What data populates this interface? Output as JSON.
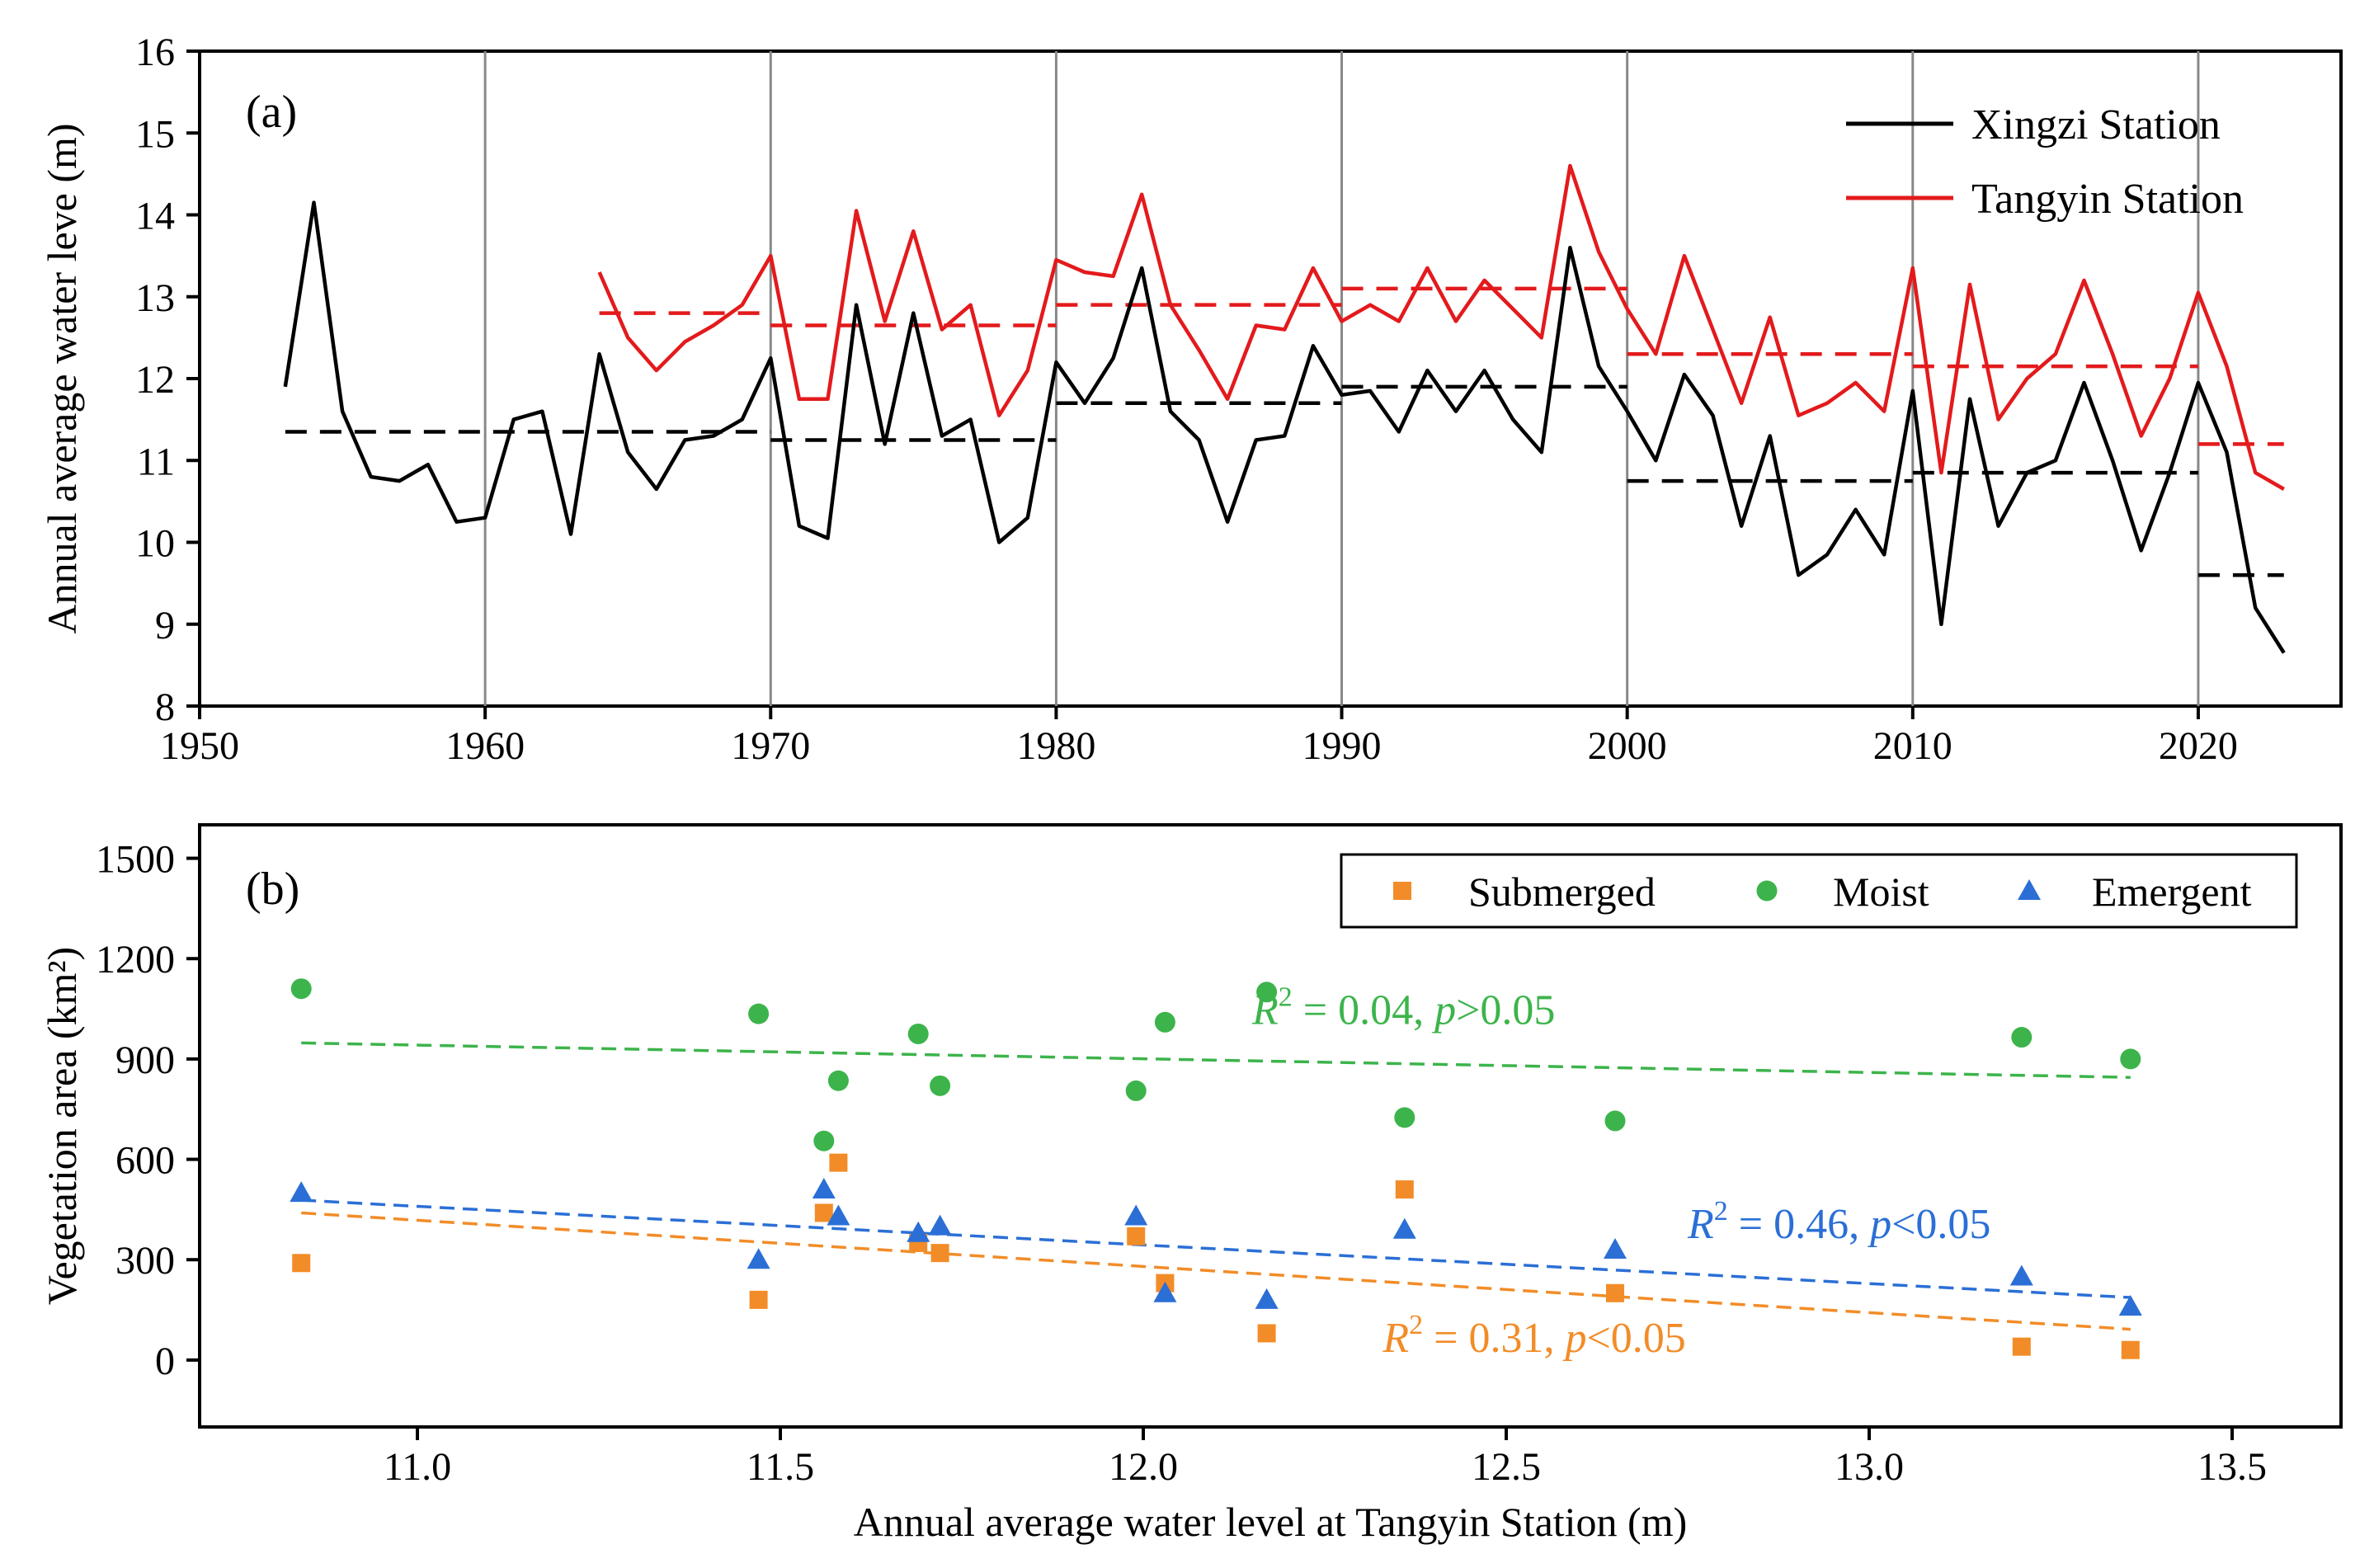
{
  "colors": {
    "xingzi": "#000000",
    "tangyin": "#e31a1c",
    "submerged": "#f28c28",
    "moist": "#3cb44b",
    "emergent": "#2b6fd6",
    "vline": "#888888"
  },
  "chart_data": [
    {
      "type": "line",
      "panel_label": "(a)",
      "xlabel": "",
      "ylabel": "Annual average water leve (m)",
      "xlim": [
        1950,
        2025
      ],
      "ylim": [
        8,
        16
      ],
      "xticks": [
        1950,
        1960,
        1970,
        1980,
        1990,
        2000,
        2010,
        2020
      ],
      "yticks": [
        8,
        9,
        10,
        11,
        12,
        13,
        14,
        15,
        16
      ],
      "decade_lines": [
        1960,
        1970,
        1980,
        1990,
        2000,
        2010,
        2020
      ],
      "legend": [
        "Xingzi Station",
        "Tangyin Station"
      ],
      "series": [
        {
          "name": "Xingzi Station",
          "x": [
            1953,
            1954,
            1955,
            1956,
            1957,
            1958,
            1959,
            1960,
            1961,
            1962,
            1963,
            1964,
            1965,
            1966,
            1967,
            1968,
            1969,
            1970,
            1971,
            1972,
            1973,
            1974,
            1975,
            1976,
            1977,
            1978,
            1979,
            1980,
            1981,
            1982,
            1983,
            1984,
            1985,
            1986,
            1987,
            1988,
            1989,
            1990,
            1991,
            1992,
            1993,
            1994,
            1995,
            1996,
            1997,
            1998,
            1999,
            2000,
            2001,
            2002,
            2003,
            2004,
            2005,
            2006,
            2007,
            2008,
            2009,
            2010,
            2011,
            2012,
            2013,
            2014,
            2015,
            2016,
            2017,
            2018,
            2019,
            2020,
            2021,
            2022,
            2023
          ],
          "values": [
            11.9,
            14.15,
            11.6,
            10.8,
            10.75,
            10.95,
            10.25,
            10.3,
            11.5,
            11.6,
            10.1,
            12.3,
            11.1,
            10.65,
            11.25,
            11.3,
            11.5,
            12.25,
            10.2,
            10.05,
            12.9,
            11.2,
            12.8,
            11.3,
            11.5,
            10.0,
            10.3,
            12.2,
            11.7,
            12.25,
            13.35,
            11.6,
            11.25,
            10.25,
            11.25,
            11.3,
            12.4,
            11.8,
            11.85,
            11.35,
            12.1,
            11.6,
            12.1,
            11.5,
            11.1,
            13.6,
            12.15,
            11.6,
            11.0,
            12.05,
            11.55,
            10.2,
            11.3,
            9.6,
            9.85,
            10.4,
            9.85,
            11.85,
            9.0,
            11.75,
            10.2,
            10.85,
            11.0,
            11.95,
            11.0,
            9.9,
            10.85,
            11.95,
            11.1,
            9.2,
            8.65
          ]
        },
        {
          "name": "Tangyin Station",
          "x": [
            1964,
            1965,
            1966,
            1967,
            1968,
            1969,
            1970,
            1971,
            1972,
            1973,
            1974,
            1975,
            1976,
            1977,
            1978,
            1979,
            1980,
            1981,
            1982,
            1983,
            1984,
            1985,
            1986,
            1987,
            1988,
            1989,
            1990,
            1991,
            1992,
            1993,
            1994,
            1995,
            1996,
            1997,
            1998,
            1999,
            2000,
            2001,
            2002,
            2003,
            2004,
            2005,
            2006,
            2007,
            2008,
            2009,
            2010,
            2011,
            2012,
            2013,
            2014,
            2015,
            2016,
            2017,
            2018,
            2019,
            2020,
            2021,
            2022,
            2023
          ],
          "values": [
            13.3,
            12.5,
            12.1,
            12.45,
            12.65,
            12.9,
            13.5,
            11.75,
            11.75,
            14.05,
            12.7,
            13.8,
            12.6,
            12.9,
            11.55,
            12.1,
            13.45,
            13.3,
            13.25,
            14.25,
            12.9,
            12.35,
            11.75,
            12.65,
            12.6,
            13.35,
            12.7,
            12.9,
            12.7,
            13.35,
            12.7,
            13.2,
            12.85,
            12.5,
            14.6,
            13.55,
            12.85,
            12.3,
            13.5,
            12.6,
            11.7,
            12.75,
            11.55,
            11.7,
            11.95,
            11.6,
            13.35,
            10.85,
            13.15,
            11.5,
            12.0,
            12.3,
            13.2,
            12.3,
            11.3,
            12.0,
            13.05,
            12.15,
            10.85,
            10.65
          ]
        }
      ],
      "means": [
        {
          "series": "Xingzi Station",
          "x0": 1953,
          "x1": 1970,
          "value": 11.35
        },
        {
          "series": "Xingzi Station",
          "x0": 1970,
          "x1": 1980,
          "value": 11.25
        },
        {
          "series": "Xingzi Station",
          "x0": 1980,
          "x1": 1990,
          "value": 11.7
        },
        {
          "series": "Xingzi Station",
          "x0": 1990,
          "x1": 2000,
          "value": 11.9
        },
        {
          "series": "Xingzi Station",
          "x0": 2000,
          "x1": 2010,
          "value": 10.75
        },
        {
          "series": "Xingzi Station",
          "x0": 2010,
          "x1": 2020,
          "value": 10.85
        },
        {
          "series": "Xingzi Station",
          "x0": 2020,
          "x1": 2023,
          "value": 9.6
        },
        {
          "series": "Tangyin Station",
          "x0": 1964,
          "x1": 1970,
          "value": 12.8
        },
        {
          "series": "Tangyin Station",
          "x0": 1970,
          "x1": 1980,
          "value": 12.65
        },
        {
          "series": "Tangyin Station",
          "x0": 1980,
          "x1": 1990,
          "value": 12.9
        },
        {
          "series": "Tangyin Station",
          "x0": 1990,
          "x1": 2000,
          "value": 13.1
        },
        {
          "series": "Tangyin Station",
          "x0": 2000,
          "x1": 2010,
          "value": 12.3
        },
        {
          "series": "Tangyin Station",
          "x0": 2010,
          "x1": 2020,
          "value": 12.15
        },
        {
          "series": "Tangyin Station",
          "x0": 2020,
          "x1": 2023,
          "value": 11.2
        }
      ]
    },
    {
      "type": "scatter",
      "panel_label": "(b)",
      "xlabel": "Annual average water level at Tangyin Station (m)",
      "ylabel": "Vegetation area (km²)",
      "xlim": [
        10.7,
        13.65
      ],
      "ylim": [
        -200,
        1600
      ],
      "xticks": [
        11.0,
        11.5,
        12.0,
        12.5,
        13.0,
        13.5
      ],
      "yticks": [
        0,
        300,
        600,
        900,
        1200,
        1500
      ],
      "legend": [
        "Submerged",
        "Moist",
        "Emergent"
      ],
      "series": [
        {
          "name": "Submerged",
          "x": [
            10.84,
            11.47,
            11.56,
            11.58,
            11.69,
            11.72,
            11.99,
            12.03,
            12.17,
            12.36,
            12.65,
            13.21,
            13.36
          ],
          "values": [
            290,
            180,
            440,
            590,
            350,
            320,
            370,
            230,
            80,
            510,
            200,
            40,
            30
          ]
        },
        {
          "name": "Moist",
          "x": [
            10.84,
            11.47,
            11.56,
            11.58,
            11.69,
            11.72,
            11.99,
            12.03,
            12.17,
            12.36,
            12.65,
            13.21,
            13.36
          ],
          "values": [
            1110,
            1035,
            655,
            835,
            975,
            820,
            805,
            1010,
            1100,
            725,
            715,
            965,
            900
          ]
        },
        {
          "name": "Emergent",
          "x": [
            10.84,
            11.47,
            11.56,
            11.58,
            11.69,
            11.72,
            11.99,
            12.03,
            12.17,
            12.36,
            12.65,
            13.21,
            13.36
          ],
          "values": [
            500,
            300,
            510,
            430,
            380,
            400,
            430,
            200,
            180,
            390,
            330,
            250,
            160
          ]
        }
      ],
      "fits": [
        {
          "series": "Moist",
          "x0": 10.84,
          "x1": 13.36,
          "y0": 948,
          "y1": 845,
          "label_r2": "0.04",
          "label_p": "p>0.05"
        },
        {
          "series": "Emergent",
          "x0": 10.84,
          "x1": 13.36,
          "y0": 478,
          "y1": 187,
          "label_r2": "0.46",
          "label_p": "p<0.05"
        },
        {
          "series": "Submerged",
          "x0": 10.84,
          "x1": 13.36,
          "y0": 440,
          "y1": 92,
          "label_r2": "0.31",
          "label_p": "p<0.05"
        }
      ],
      "annotations": [
        {
          "series": "Moist",
          "r2": "0.04",
          "p": "p",
          "rel": ">0.05",
          "anchor_x": 12.15,
          "anchor_y": 1005
        },
        {
          "series": "Emergent",
          "r2": "0.46",
          "p": "p",
          "rel": "<0.05",
          "anchor_x": 12.75,
          "anchor_y": 365
        },
        {
          "series": "Submerged",
          "r2": "0.31",
          "p": "p",
          "rel": "<0.05",
          "anchor_x": 12.33,
          "anchor_y": 25
        }
      ]
    }
  ]
}
